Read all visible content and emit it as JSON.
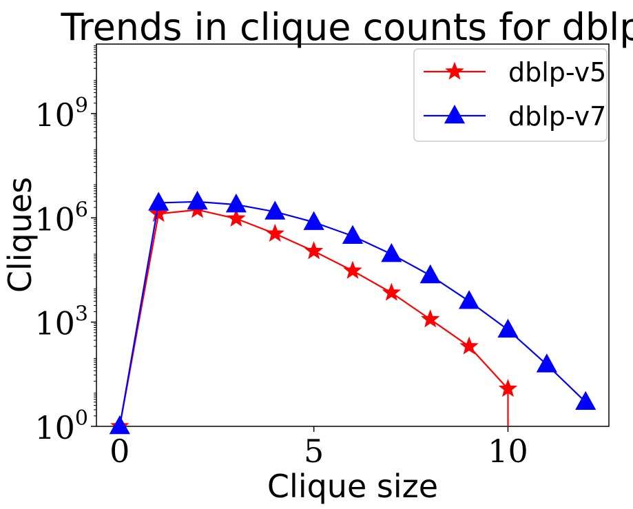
{
  "chart_data": {
    "type": "line",
    "title": "Trends in clique counts for dblp",
    "xlabel": "Clique size",
    "ylabel": "Cliques",
    "yscale": "log",
    "xlim": [
      -0.6,
      12.6
    ],
    "ylim_log10": [
      0,
      11
    ],
    "xticks": [
      {
        "value": 0,
        "label": "0"
      },
      {
        "value": 5,
        "label": "5"
      },
      {
        "value": 10,
        "label": "10"
      }
    ],
    "yticks": [
      {
        "exp": 0,
        "base": "10",
        "sup": "0"
      },
      {
        "exp": 3,
        "base": "10",
        "sup": "3"
      },
      {
        "exp": 6,
        "base": "10",
        "sup": "6"
      },
      {
        "exp": 9,
        "base": "10",
        "sup": "9"
      }
    ],
    "legend_position": "top-right",
    "series": [
      {
        "name": "dblp-v5",
        "color": "#ff0000",
        "marker": "star",
        "x": [
          0,
          1,
          2,
          3,
          4,
          5,
          6,
          7,
          8,
          9,
          10
        ],
        "y": [
          1,
          1300000,
          1700000,
          950000,
          350000,
          110000,
          30000,
          7000,
          1200,
          200,
          12
        ],
        "y_ends_at_zero_after_last": true
      },
      {
        "name": "dblp-v7",
        "color": "#0000ff",
        "marker": "triangle",
        "x": [
          0,
          1,
          2,
          3,
          4,
          5,
          6,
          7,
          8,
          9,
          10,
          11,
          12
        ],
        "y": [
          1,
          2700000,
          2900000,
          2400000,
          1500000,
          750000,
          300000,
          90000,
          22000,
          4000,
          600,
          60,
          5
        ]
      }
    ]
  }
}
